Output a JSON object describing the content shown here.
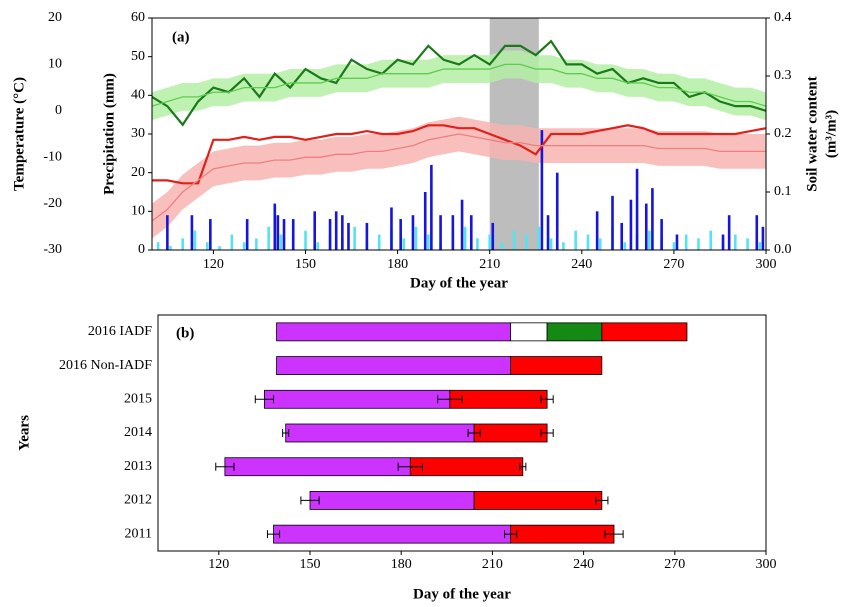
{
  "chart_data": [
    {
      "type": "combo",
      "panel_label": "(a)",
      "xlabel": "Day of the year",
      "xlim": [
        100,
        300
      ],
      "xticks": [
        120,
        150,
        180,
        210,
        240,
        270,
        300
      ],
      "ylabel": "Precipitation (mm)",
      "ylim": [
        0,
        60
      ],
      "yticks": [
        0,
        10,
        20,
        30,
        40,
        50,
        60
      ],
      "temp_label": "Temperature (°C)",
      "temp_lim": [
        -30,
        20
      ],
      "temp_ticks": [
        -30,
        -20,
        -10,
        0,
        10,
        20
      ],
      "y2label": [
        "Soil water content",
        "(m³/m³)"
      ],
      "y2lim": [
        0,
        0.4
      ],
      "y2ticks": [
        {
          "value": 0,
          "label": "0.0"
        },
        0.1,
        0.2,
        0.3,
        0.4
      ],
      "shade": [
        210,
        226
      ],
      "shade_color": "#bdbdbd",
      "x": [
        100,
        105,
        110,
        115,
        120,
        125,
        130,
        135,
        140,
        145,
        150,
        155,
        160,
        165,
        170,
        175,
        180,
        185,
        190,
        195,
        200,
        205,
        210,
        215,
        220,
        225,
        230,
        235,
        240,
        245,
        250,
        255,
        260,
        265,
        270,
        275,
        280,
        285,
        290,
        295,
        300
      ],
      "series": [
        {
          "color": "#1a7a1a",
          "axis": "temp",
          "values": [
            3,
            1,
            -3,
            2,
            5,
            4,
            7,
            3,
            8,
            5,
            9,
            7,
            6,
            11,
            9,
            8,
            11,
            10,
            14,
            11,
            10,
            12,
            10,
            14,
            14,
            12,
            15,
            10,
            10,
            8,
            9,
            6,
            7,
            6,
            6,
            3,
            4,
            2,
            1,
            1,
            0
          ]
        },
        {
          "color": "#5fcc4f",
          "band_color": "#b4f0a4",
          "axis": "temp",
          "values": [
            1,
            2,
            3,
            3,
            4,
            4,
            5,
            5,
            5,
            6,
            6,
            6,
            7,
            7,
            7,
            8,
            8,
            8,
            8,
            9,
            9,
            9,
            9,
            10,
            10,
            9,
            9,
            8,
            8,
            7,
            7,
            6,
            6,
            5,
            5,
            4,
            4,
            3,
            2,
            2,
            1
          ],
          "lower": [
            -2,
            -1,
            0,
            0,
            1,
            1,
            2,
            2,
            2,
            3,
            3,
            3,
            4,
            4,
            4,
            5,
            5,
            5,
            5,
            6,
            6,
            6,
            6,
            7,
            7,
            6,
            6,
            5,
            5,
            4,
            4,
            3,
            3,
            2,
            2,
            1,
            1,
            0,
            -1,
            -1,
            -2
          ],
          "upper": [
            4,
            5,
            6,
            6,
            7,
            7,
            8,
            8,
            8,
            9,
            9,
            9,
            10,
            10,
            10,
            11,
            11,
            11,
            11,
            12,
            12,
            12,
            12,
            13,
            13,
            12,
            12,
            11,
            11,
            10,
            10,
            9,
            9,
            8,
            8,
            7,
            7,
            6,
            5,
            5,
            4
          ]
        },
        {
          "color": "#e0201a",
          "axis": "y2",
          "values": [
            0.12,
            0.12,
            0.115,
            0.115,
            0.19,
            0.19,
            0.195,
            0.19,
            0.195,
            0.195,
            0.19,
            0.195,
            0.2,
            0.2,
            0.205,
            0.2,
            0.2,
            0.205,
            0.215,
            0.215,
            0.21,
            0.21,
            0.2,
            0.19,
            0.18,
            0.165,
            0.2,
            0.2,
            0.2,
            0.205,
            0.21,
            0.215,
            0.21,
            0.2,
            0.2,
            0.2,
            0.2,
            0.2,
            0.2,
            0.205,
            0.21
          ]
        },
        {
          "color": "#ef8080",
          "band_color": "#f7b4b0",
          "axis": "y2",
          "values": [
            0.05,
            0.07,
            0.1,
            0.12,
            0.14,
            0.145,
            0.15,
            0.15,
            0.155,
            0.155,
            0.16,
            0.16,
            0.165,
            0.165,
            0.17,
            0.17,
            0.175,
            0.18,
            0.19,
            0.195,
            0.2,
            0.195,
            0.19,
            0.185,
            0.185,
            0.18,
            0.18,
            0.18,
            0.18,
            0.18,
            0.18,
            0.18,
            0.18,
            0.175,
            0.175,
            0.175,
            0.175,
            0.17,
            0.17,
            0.17,
            0.17
          ],
          "lower": [
            0.02,
            0.04,
            0.07,
            0.09,
            0.11,
            0.115,
            0.12,
            0.12,
            0.125,
            0.125,
            0.13,
            0.13,
            0.135,
            0.135,
            0.14,
            0.14,
            0.145,
            0.15,
            0.16,
            0.165,
            0.17,
            0.165,
            0.16,
            0.155,
            0.155,
            0.15,
            0.15,
            0.15,
            0.15,
            0.15,
            0.15,
            0.15,
            0.15,
            0.145,
            0.145,
            0.145,
            0.145,
            0.14,
            0.14,
            0.14,
            0.14
          ],
          "upper": [
            0.08,
            0.1,
            0.13,
            0.15,
            0.17,
            0.175,
            0.18,
            0.18,
            0.185,
            0.185,
            0.19,
            0.19,
            0.195,
            0.195,
            0.2,
            0.2,
            0.205,
            0.21,
            0.22,
            0.225,
            0.23,
            0.225,
            0.22,
            0.215,
            0.215,
            0.21,
            0.21,
            0.21,
            0.21,
            0.21,
            0.21,
            0.21,
            0.21,
            0.205,
            0.205,
            0.205,
            0.205,
            0.2,
            0.2,
            0.2,
            0.2
          ]
        }
      ],
      "bars": [
        {
          "color": "#55e3f0",
          "x": [
            102,
            106,
            110,
            114,
            118,
            122,
            126,
            130,
            134,
            138,
            142,
            146,
            150,
            154,
            158,
            162,
            166,
            170,
            174,
            178,
            182,
            186,
            190,
            194,
            198,
            202,
            206,
            210,
            214,
            218,
            222,
            226,
            230,
            234,
            238,
            242,
            246,
            250,
            254,
            258,
            262,
            266,
            270,
            274,
            278,
            282,
            286,
            290,
            294,
            298
          ],
          "values": [
            2,
            1,
            3,
            5,
            2,
            1,
            4,
            2,
            3,
            6,
            4,
            3,
            5,
            2,
            4,
            3,
            6,
            2,
            4,
            5,
            3,
            6,
            4,
            2,
            5,
            6,
            3,
            4,
            2,
            5,
            4,
            6,
            3,
            2,
            5,
            4,
            3,
            6,
            2,
            4,
            5,
            3,
            2,
            4,
            3,
            5,
            2,
            4,
            3,
            2
          ]
        },
        {
          "color": "#1515dd",
          "x": [
            105,
            113,
            119,
            131,
            140,
            141,
            143,
            146,
            153,
            158,
            160,
            162,
            164,
            170,
            178,
            181,
            185,
            189,
            191,
            194,
            198,
            201,
            204,
            211,
            227,
            229,
            232,
            245,
            250,
            253,
            256,
            258,
            261,
            263,
            266,
            271,
            286,
            288,
            297,
            299
          ],
          "values": [
            9,
            9,
            8,
            8,
            12,
            9,
            8,
            8,
            10,
            8,
            10,
            9,
            7,
            7,
            11,
            8,
            9,
            15,
            22,
            9,
            9,
            13,
            9,
            7,
            31,
            9,
            20,
            10,
            14,
            7,
            13,
            21,
            12,
            16,
            8,
            4,
            4,
            9,
            9,
            6
          ]
        }
      ]
    },
    {
      "type": "bar",
      "panel_label": "(b)",
      "xlabel": "Day of the year",
      "ylabel": "Years",
      "xlim": [
        100,
        300
      ],
      "xticks": [
        120,
        150,
        180,
        210,
        240,
        270,
        300
      ],
      "categories": [
        "2016 IADF",
        "2016 Non-IADF",
        "2015",
        "2014",
        "2013",
        "2012",
        "2011"
      ],
      "series": [
        {
          "color": "#cc33ff",
          "values": [
            [
              139,
              216
            ],
            [
              139,
              216
            ],
            [
              135,
              196
            ],
            [
              142,
              204
            ],
            [
              122,
              183
            ],
            [
              150,
              204
            ],
            [
              138,
              216
            ]
          ],
          "errors": [
            [
              null,
              null
            ],
            [
              null,
              null
            ],
            [
              3,
              4
            ],
            [
              1,
              2
            ],
            [
              3,
              4
            ],
            [
              3,
              null
            ],
            [
              2,
              2
            ]
          ]
        },
        {
          "color": "#ffffff",
          "values": [
            [
              216,
              228
            ],
            null,
            null,
            null,
            null,
            null,
            null
          ]
        },
        {
          "color": "#148a14",
          "values": [
            [
              228,
              246
            ],
            null,
            null,
            null,
            null,
            null,
            null
          ]
        },
        {
          "color": "#ff0000",
          "values": [
            [
              246,
              274
            ],
            [
              216,
              246
            ],
            [
              196,
              228
            ],
            [
              204,
              228
            ],
            [
              183,
              220
            ],
            [
              204,
              246
            ],
            [
              216,
              250
            ]
          ],
          "errors": [
            [
              null,
              null
            ],
            [
              null,
              null
            ],
            [
              null,
              2
            ],
            [
              null,
              2
            ],
            [
              null,
              1
            ],
            [
              null,
              2
            ],
            [
              null,
              3
            ]
          ]
        }
      ]
    }
  ]
}
